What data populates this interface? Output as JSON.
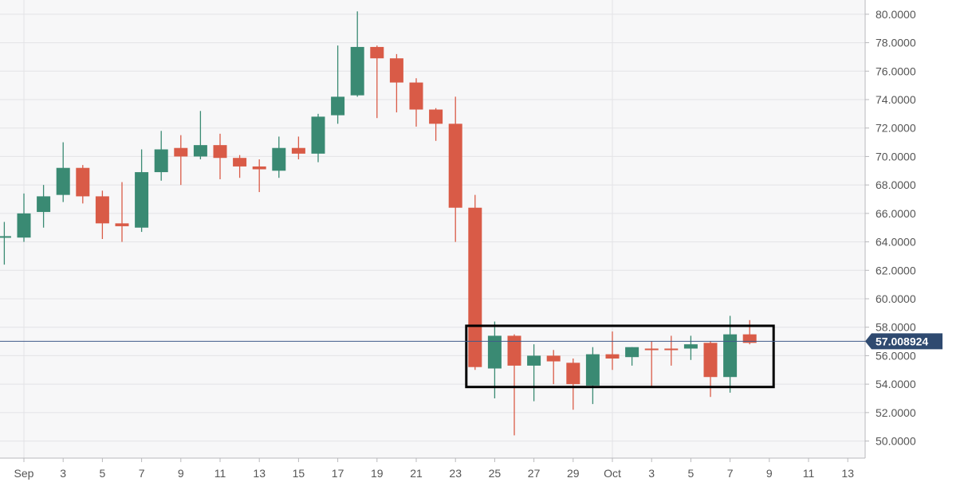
{
  "chart_data": {
    "type": "candlestick",
    "yaxis": {
      "ticks": [
        "50.0000",
        "52.0000",
        "54.0000",
        "56.0000",
        "58.0000",
        "60.0000",
        "62.0000",
        "64.0000",
        "66.0000",
        "68.0000",
        "70.0000",
        "72.0000",
        "74.0000",
        "76.0000",
        "78.0000",
        "80.0000"
      ],
      "ylim": [
        48.8,
        81.0
      ],
      "position": "right"
    },
    "xaxis": {
      "tick_labels": [
        {
          "label": "Sep",
          "date": "Sep 1"
        },
        {
          "label": "3",
          "date": "Sep 3"
        },
        {
          "label": "5",
          "date": "Sep 5"
        },
        {
          "label": "7",
          "date": "Sep 7"
        },
        {
          "label": "9",
          "date": "Sep 9"
        },
        {
          "label": "11",
          "date": "Sep 11"
        },
        {
          "label": "13",
          "date": "Sep 13"
        },
        {
          "label": "15",
          "date": "Sep 15"
        },
        {
          "label": "17",
          "date": "Sep 17"
        },
        {
          "label": "19",
          "date": "Sep 19"
        },
        {
          "label": "21",
          "date": "Sep 21"
        },
        {
          "label": "23",
          "date": "Sep 23"
        },
        {
          "label": "25",
          "date": "Sep 25"
        },
        {
          "label": "27",
          "date": "Sep 27"
        },
        {
          "label": "29",
          "date": "Sep 29"
        },
        {
          "label": "Oct",
          "date": "Oct 1"
        },
        {
          "label": "3",
          "date": "Oct 3"
        },
        {
          "label": "5",
          "date": "Oct 5"
        },
        {
          "label": "7",
          "date": "Oct 7"
        },
        {
          "label": "9",
          "date": "Oct 9"
        },
        {
          "label": "11",
          "date": "Oct 11"
        },
        {
          "label": "13",
          "date": "Oct 13"
        }
      ]
    },
    "candles": [
      {
        "date": "Aug 31",
        "open": 64.4,
        "high": 65.4,
        "low": 62.4,
        "close": 64.4
      },
      {
        "date": "Sep 1",
        "open": 64.3,
        "high": 67.4,
        "low": 64.0,
        "close": 66.0
      },
      {
        "date": "Sep 2",
        "open": 66.1,
        "high": 68.0,
        "low": 65.0,
        "close": 67.2
      },
      {
        "date": "Sep 3",
        "open": 67.3,
        "high": 71.0,
        "low": 66.8,
        "close": 69.2
      },
      {
        "date": "Sep 4",
        "open": 69.2,
        "high": 69.4,
        "low": 66.7,
        "close": 67.2
      },
      {
        "date": "Sep 5",
        "open": 67.2,
        "high": 67.6,
        "low": 64.2,
        "close": 65.3
      },
      {
        "date": "Sep 6",
        "open": 65.3,
        "high": 68.2,
        "low": 64.0,
        "close": 65.1
      },
      {
        "date": "Sep 7",
        "open": 65.0,
        "high": 70.5,
        "low": 64.7,
        "close": 68.9
      },
      {
        "date": "Sep 8",
        "open": 68.9,
        "high": 71.8,
        "low": 68.3,
        "close": 70.5
      },
      {
        "date": "Sep 9",
        "open": 70.6,
        "high": 71.5,
        "low": 68.0,
        "close": 70.0
      },
      {
        "date": "Sep 10",
        "open": 70.0,
        "high": 73.2,
        "low": 69.8,
        "close": 70.8
      },
      {
        "date": "Sep 11",
        "open": 70.8,
        "high": 71.6,
        "low": 68.4,
        "close": 69.9
      },
      {
        "date": "Sep 12",
        "open": 69.9,
        "high": 70.1,
        "low": 68.5,
        "close": 69.3
      },
      {
        "date": "Sep 13",
        "open": 69.3,
        "high": 69.8,
        "low": 67.5,
        "close": 69.1
      },
      {
        "date": "Sep 14",
        "open": 69.0,
        "high": 71.4,
        "low": 68.5,
        "close": 70.6
      },
      {
        "date": "Sep 15",
        "open": 70.6,
        "high": 71.4,
        "low": 69.8,
        "close": 70.2
      },
      {
        "date": "Sep 16",
        "open": 70.2,
        "high": 73.0,
        "low": 69.6,
        "close": 72.8
      },
      {
        "date": "Sep 17",
        "open": 72.9,
        "high": 77.8,
        "low": 72.3,
        "close": 74.2
      },
      {
        "date": "Sep 18",
        "open": 74.3,
        "high": 80.2,
        "low": 74.2,
        "close": 77.7
      },
      {
        "date": "Sep 19",
        "open": 77.7,
        "high": 77.8,
        "low": 72.7,
        "close": 76.9
      },
      {
        "date": "Sep 20",
        "open": 76.9,
        "high": 77.2,
        "low": 73.1,
        "close": 75.2
      },
      {
        "date": "Sep 21",
        "open": 75.2,
        "high": 75.5,
        "low": 72.1,
        "close": 73.3
      },
      {
        "date": "Sep 22",
        "open": 73.3,
        "high": 73.4,
        "low": 71.1,
        "close": 72.3
      },
      {
        "date": "Sep 23",
        "open": 72.3,
        "high": 74.2,
        "low": 64.0,
        "close": 66.4
      },
      {
        "date": "Sep 24",
        "open": 66.4,
        "high": 67.3,
        "low": 55.0,
        "close": 55.2
      },
      {
        "date": "Sep 25",
        "open": 55.1,
        "high": 58.4,
        "low": 53.0,
        "close": 57.4
      },
      {
        "date": "Sep 26",
        "open": 57.4,
        "high": 57.5,
        "low": 50.4,
        "close": 55.3
      },
      {
        "date": "Sep 27",
        "open": 55.3,
        "high": 56.8,
        "low": 52.8,
        "close": 56.0
      },
      {
        "date": "Sep 28",
        "open": 56.0,
        "high": 56.4,
        "low": 54.0,
        "close": 55.6
      },
      {
        "date": "Sep 29",
        "open": 55.5,
        "high": 55.8,
        "low": 52.2,
        "close": 54.0
      },
      {
        "date": "Sep 30",
        "open": 53.9,
        "high": 56.6,
        "low": 52.6,
        "close": 56.1
      },
      {
        "date": "Oct 1",
        "open": 56.1,
        "high": 57.7,
        "low": 55.0,
        "close": 55.8
      },
      {
        "date": "Oct 2",
        "open": 55.9,
        "high": 56.6,
        "low": 55.3,
        "close": 56.6
      },
      {
        "date": "Oct 3",
        "open": 56.5,
        "high": 57.0,
        "low": 53.8,
        "close": 56.4
      },
      {
        "date": "Oct 4",
        "open": 56.5,
        "high": 57.4,
        "low": 55.3,
        "close": 56.4
      },
      {
        "date": "Oct 5",
        "open": 56.5,
        "high": 57.4,
        "low": 55.7,
        "close": 56.8
      },
      {
        "date": "Oct 6",
        "open": 56.9,
        "high": 57.0,
        "low": 53.1,
        "close": 54.5
      },
      {
        "date": "Oct 7",
        "open": 54.5,
        "high": 58.8,
        "low": 53.4,
        "close": 57.5
      },
      {
        "date": "Oct 8",
        "open": 57.5,
        "high": 58.5,
        "low": 56.8,
        "close": 56.9
      }
    ],
    "current_price": {
      "value": 57.008924,
      "label": "57.008924"
    },
    "highlight_box": {
      "from": "Sep 24",
      "to": "Oct 8",
      "low": 53.8,
      "high": 58.1
    },
    "colors": {
      "up": "#3a8a73",
      "down": "#d95b47",
      "price_line": "#3f5a8a",
      "price_label_bg": "#2f4a70",
      "grid": "#e3e3e6",
      "plot_bg": "#f7f7f8",
      "axis_text": "#555555",
      "box": "#000000"
    },
    "grid": true
  }
}
